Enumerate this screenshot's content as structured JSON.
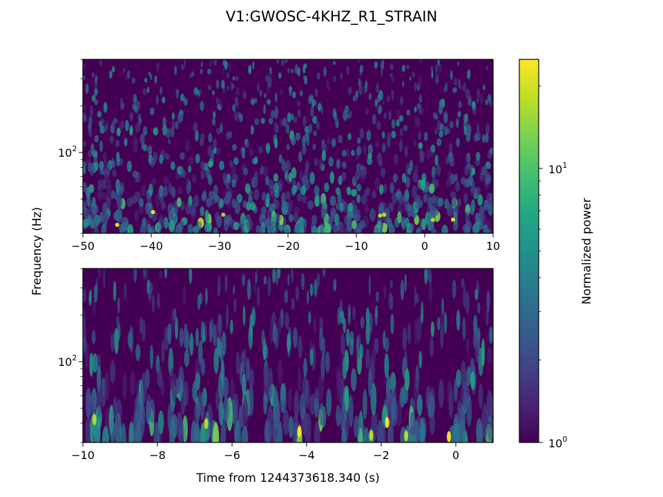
{
  "title": "V1:GWOSC-4KHZ_R1_STRAIN",
  "ylabel": "Frequency (Hz)",
  "xlabel": "Time from 1244373618.340 (s)",
  "colorbar_label": "Normalized power",
  "colormap": "viridis",
  "colors": {
    "viridis": [
      "#440154",
      "#482475",
      "#414487",
      "#355f8d",
      "#2a788e",
      "#21918c",
      "#22a884",
      "#44bf70",
      "#7ad151",
      "#bddf26",
      "#fde725"
    ]
  },
  "chart_data": [
    {
      "type": "heatmap",
      "panel": "top",
      "x_range": [
        -50,
        10
      ],
      "x_ticks": [
        -50,
        -40,
        -30,
        -20,
        -10,
        0,
        10
      ],
      "x_tick_labels": [
        "−50",
        "−40",
        "−30",
        "−20",
        "−10",
        "0",
        "10"
      ],
      "y_scale": "log",
      "y_range": [
        30,
        400
      ],
      "y_tick_labels": [
        {
          "base": "10",
          "exp": "2",
          "value": 100
        }
      ],
      "color_scale": "log",
      "color_range": [
        1,
        25
      ]
    },
    {
      "type": "heatmap",
      "panel": "bottom",
      "x_range": [
        -10,
        1
      ],
      "x_ticks": [
        -10,
        -8,
        -6,
        -4,
        -2,
        0
      ],
      "x_tick_labels": [
        "−10",
        "−8",
        "−6",
        "−4",
        "−2",
        "0"
      ],
      "y_scale": "log",
      "y_range": [
        30,
        400
      ],
      "y_tick_labels": [
        {
          "base": "10",
          "exp": "2",
          "value": 100
        }
      ],
      "color_scale": "log",
      "color_range": [
        1,
        25
      ],
      "colorbar_ticks": [
        {
          "base": "10",
          "exp": "0",
          "value": 1
        },
        {
          "base": "10",
          "exp": "1",
          "value": 10
        }
      ]
    }
  ]
}
